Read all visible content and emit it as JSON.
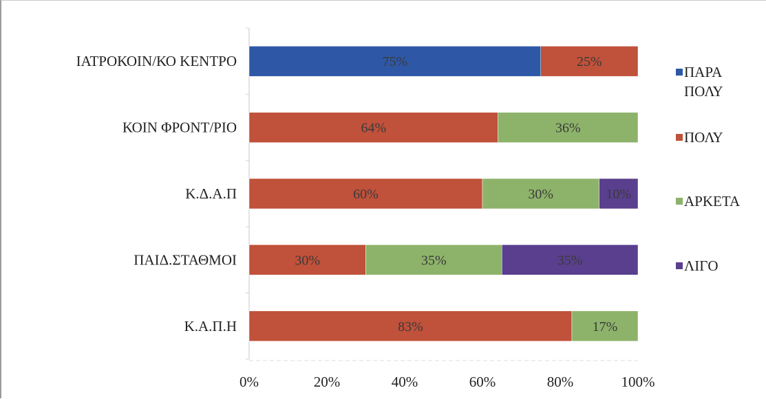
{
  "chart_data": {
    "type": "bar",
    "orientation": "horizontal",
    "stacked": "percent",
    "title": "",
    "xlabel": "",
    "ylabel": "",
    "xlim": [
      0,
      100
    ],
    "x_ticks": [
      "0%",
      "20%",
      "40%",
      "60%",
      "80%",
      "100%"
    ],
    "categories": [
      "ΙΑΤΡΟΚΟΙΝ/ΚΟ ΚΕΝΤΡΟ",
      "ΚΟΙΝ ΦΡΟΝΤ/ΡΙΟ",
      "Κ.Δ.Α.Π",
      "ΠΑΙΔ.ΣΤΑΘΜΟΙ",
      "Κ.Α.Π.Η"
    ],
    "series": [
      {
        "name": "ΠΑΡΑ ΠΟΛΥ",
        "color": "#2e58a6",
        "values": [
          75,
          0,
          0,
          0,
          0
        ],
        "labels": [
          "75%",
          "",
          "",
          "",
          ""
        ]
      },
      {
        "name": "ΠΟΛΥ",
        "color": "#c0513a",
        "values": [
          25,
          64,
          60,
          30,
          83
        ],
        "labels": [
          "25%",
          "64%",
          "60%",
          "30%",
          "83%"
        ]
      },
      {
        "name": "ΑΡΚΕΤΑ",
        "color": "#8db36a",
        "values": [
          0,
          36,
          30,
          35,
          17
        ],
        "labels": [
          "",
          "36%",
          "30%",
          "35%",
          "17%"
        ]
      },
      {
        "name": "ΛΙΓΟ",
        "color": "#5a3f8e",
        "values": [
          0,
          0,
          10,
          35,
          0
        ],
        "labels": [
          "",
          "",
          "10%",
          "35%",
          ""
        ]
      }
    ],
    "grid": false,
    "legend_position": "right"
  },
  "legend": {
    "items": [
      {
        "label": "ΠΑΡΑ\nΠΟΛΥ",
        "color": "#2e58a6"
      },
      {
        "label": "ΠΟΛΥ",
        "color": "#c0513a"
      },
      {
        "label": "ΑΡΚΕΤΑ",
        "color": "#8db36a"
      },
      {
        "label": "ΛΙΓΟ",
        "color": "#5a3f8e"
      }
    ]
  }
}
